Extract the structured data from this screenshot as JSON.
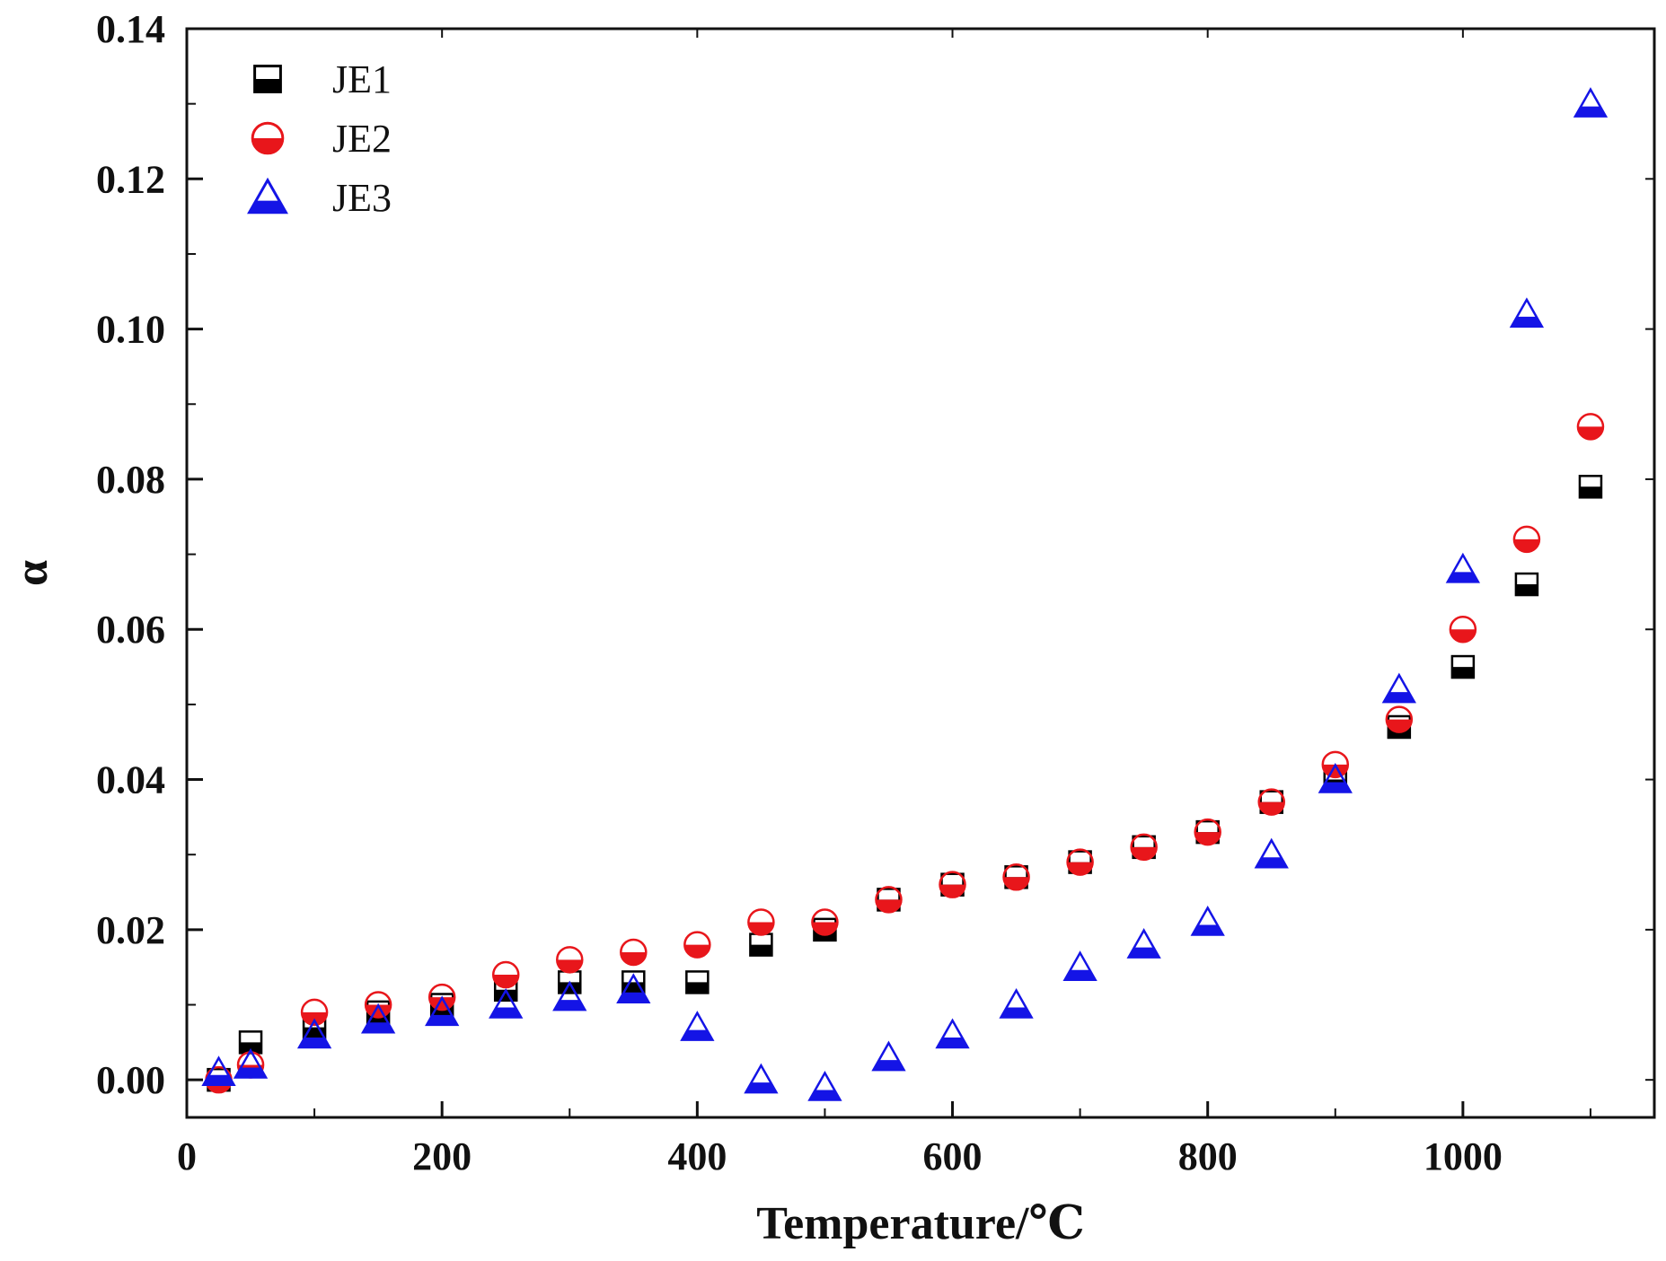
{
  "chart_data": {
    "type": "scatter",
    "title": "",
    "xlabel": "Temperature/℃",
    "ylabel": "α",
    "xlim": [
      0,
      1150
    ],
    "ylim": [
      -0.005,
      0.14
    ],
    "xticks": [
      0,
      200,
      400,
      600,
      800,
      1000
    ],
    "xtick_labels": [
      "0",
      "200",
      "400",
      "600",
      "800",
      "1000"
    ],
    "yticks": [
      0.0,
      0.02,
      0.04,
      0.06,
      0.08,
      0.1,
      0.12,
      0.14
    ],
    "ytick_labels": [
      "0.00",
      "0.02",
      "0.04",
      "0.06",
      "0.08",
      "0.10",
      "0.12",
      "0.14"
    ],
    "grid": false,
    "legend_position": "top-left",
    "series": [
      {
        "name": "JE1",
        "marker": "half-filled-square",
        "color": "#000000",
        "x": [
          25,
          50,
          100,
          150,
          200,
          250,
          300,
          350,
          400,
          450,
          500,
          550,
          600,
          650,
          700,
          750,
          800,
          850,
          900,
          950,
          1000,
          1050,
          1100
        ],
        "y": [
          0.0,
          0.005,
          0.007,
          0.009,
          0.01,
          0.012,
          0.013,
          0.013,
          0.013,
          0.018,
          0.02,
          0.024,
          0.026,
          0.027,
          0.029,
          0.031,
          0.033,
          0.037,
          0.04,
          0.047,
          0.055,
          0.066,
          0.079
        ]
      },
      {
        "name": "JE2",
        "marker": "half-filled-circle",
        "color": "#e8161b",
        "x": [
          25,
          50,
          100,
          150,
          200,
          250,
          300,
          350,
          400,
          450,
          500,
          550,
          600,
          650,
          700,
          750,
          800,
          850,
          900,
          950,
          1000,
          1050,
          1100
        ],
        "y": [
          0.0,
          0.002,
          0.009,
          0.01,
          0.011,
          0.014,
          0.016,
          0.017,
          0.018,
          0.021,
          0.021,
          0.024,
          0.026,
          0.027,
          0.029,
          0.031,
          0.033,
          0.037,
          0.042,
          0.048,
          0.06,
          0.072,
          0.087
        ]
      },
      {
        "name": "JE3",
        "marker": "half-filled-triangle",
        "color": "#1414e6",
        "x": [
          25,
          50,
          100,
          150,
          200,
          250,
          300,
          350,
          400,
          450,
          500,
          550,
          600,
          650,
          700,
          750,
          800,
          850,
          900,
          950,
          1000,
          1050,
          1100
        ],
        "y": [
          0.001,
          0.002,
          0.006,
          0.008,
          0.009,
          0.01,
          0.011,
          0.012,
          0.007,
          0.0,
          -0.001,
          0.003,
          0.006,
          0.01,
          0.015,
          0.018,
          0.021,
          0.03,
          0.04,
          0.052,
          0.068,
          0.102,
          0.13
        ]
      }
    ]
  }
}
